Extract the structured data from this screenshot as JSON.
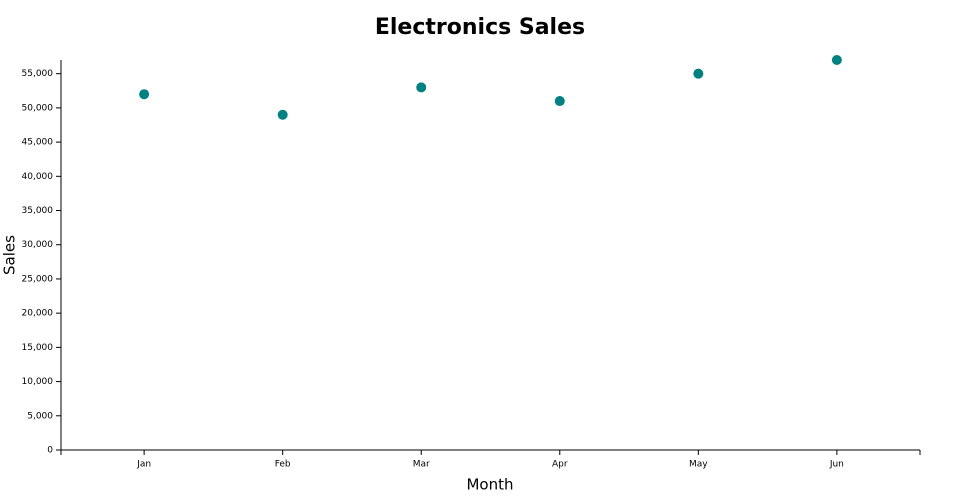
{
  "chart_data": {
    "type": "scatter",
    "title": "Electronics Sales",
    "x_label": "Month",
    "y_label": "Sales",
    "categories": [
      "Jan",
      "Feb",
      "Mar",
      "Apr",
      "May",
      "Jun"
    ],
    "values": [
      52000,
      49000,
      53000,
      51000,
      55000,
      57000
    ],
    "color": "#008080",
    "ylim": [
      0,
      57000
    ],
    "yticks": [
      0,
      {
        "value": 5000,
        "label": "5,000"
      },
      {
        "value": 10000,
        "label": "10,000"
      },
      {
        "value": 15000,
        "label": "15,000"
      },
      {
        "value": 20000,
        "label": "20,000"
      },
      {
        "value": 25000,
        "label": "25,000"
      },
      {
        "value": 30000,
        "label": "30,000"
      },
      {
        "value": 35000,
        "label": "35,000"
      },
      {
        "value": 40000,
        "label": "40,000"
      },
      {
        "value": 45000,
        "label": "45,000"
      },
      {
        "value": 50000,
        "label": "50,000"
      },
      {
        "value": 55000,
        "label": "55,000"
      }
    ],
    "grid": false
  }
}
